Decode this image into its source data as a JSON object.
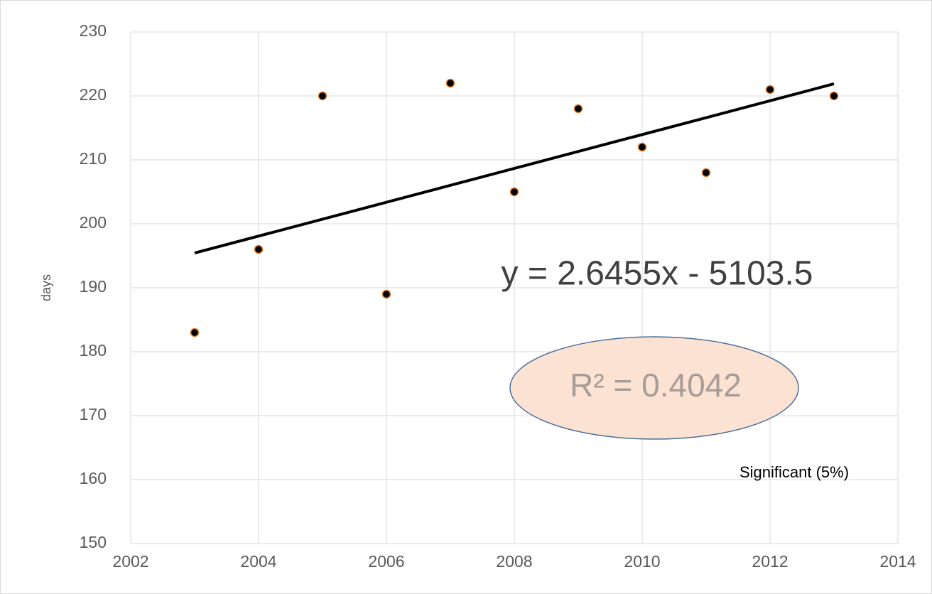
{
  "chart_data": {
    "type": "scatter",
    "x": [
      2003,
      2004,
      2005,
      2006,
      2007,
      2008,
      2009,
      2010,
      2011,
      2012,
      2013
    ],
    "y": [
      183,
      196,
      220,
      189,
      222,
      205,
      218,
      212,
      208,
      221,
      220
    ],
    "ylabel": "days",
    "xlim": [
      2002,
      2014
    ],
    "xticks": [
      2002,
      2004,
      2006,
      2008,
      2010,
      2012,
      2014
    ],
    "ylim": [
      150,
      230
    ],
    "yticks": [
      150,
      160,
      170,
      180,
      190,
      200,
      210,
      220,
      230
    ],
    "grid": true,
    "marker_color": "#000000",
    "marker_edge": "#e87722",
    "trendline": {
      "slope": 2.6455,
      "intercept": -5103.5,
      "color": "#000000"
    },
    "annotations": {
      "equation": "y = 2.6455x - 5103.5",
      "r_squared": "R² = 0.4042",
      "note": "Significant (5%)"
    }
  }
}
